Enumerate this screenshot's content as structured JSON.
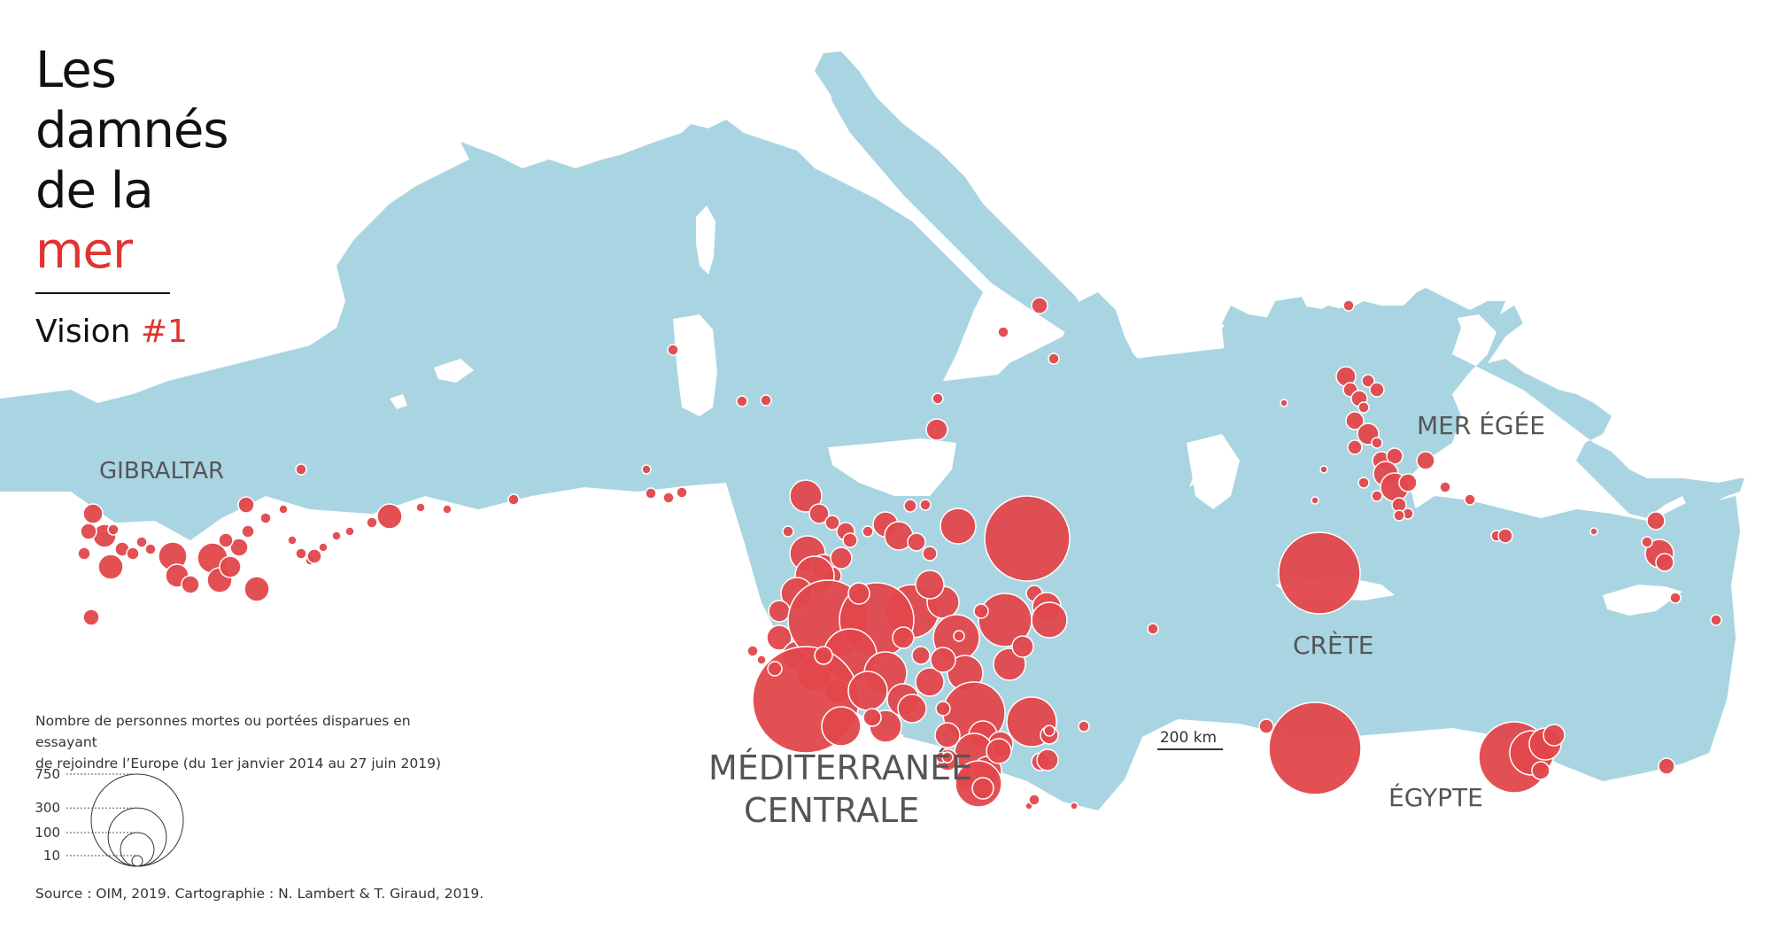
{
  "title": {
    "line1": "Les",
    "line2": "damnés",
    "line3": "de la",
    "line4": "mer"
  },
  "subtitle": {
    "prefix": "Vision",
    "accent": "#1"
  },
  "labels": {
    "gibraltar": "GIBRALTAR",
    "mer_egee": "MER ÉGÉE",
    "crete": "CRÈTE",
    "med_centrale_1": "MÉDITERRANÉE",
    "med_centrale_2": "CENTRALE",
    "egypte": "ÉGYPTE"
  },
  "scale_bar": {
    "label": "200 km"
  },
  "legend": {
    "text_line1": "Nombre de personnes mortes ou portées disparues en essayant",
    "text_line2": "de rejoindre l’Europe (du 1er janvier 2014 au 27 juin 2019)",
    "values": [
      750,
      300,
      100,
      10
    ]
  },
  "source": "Source : OIM, 2019. Cartographie : N. Lambert & T. Giraud, 2019.",
  "colors": {
    "sea": "#a9d5e2",
    "victims": "#e2474b",
    "accent": "#e2332f",
    "land": "#ffffff"
  }
}
